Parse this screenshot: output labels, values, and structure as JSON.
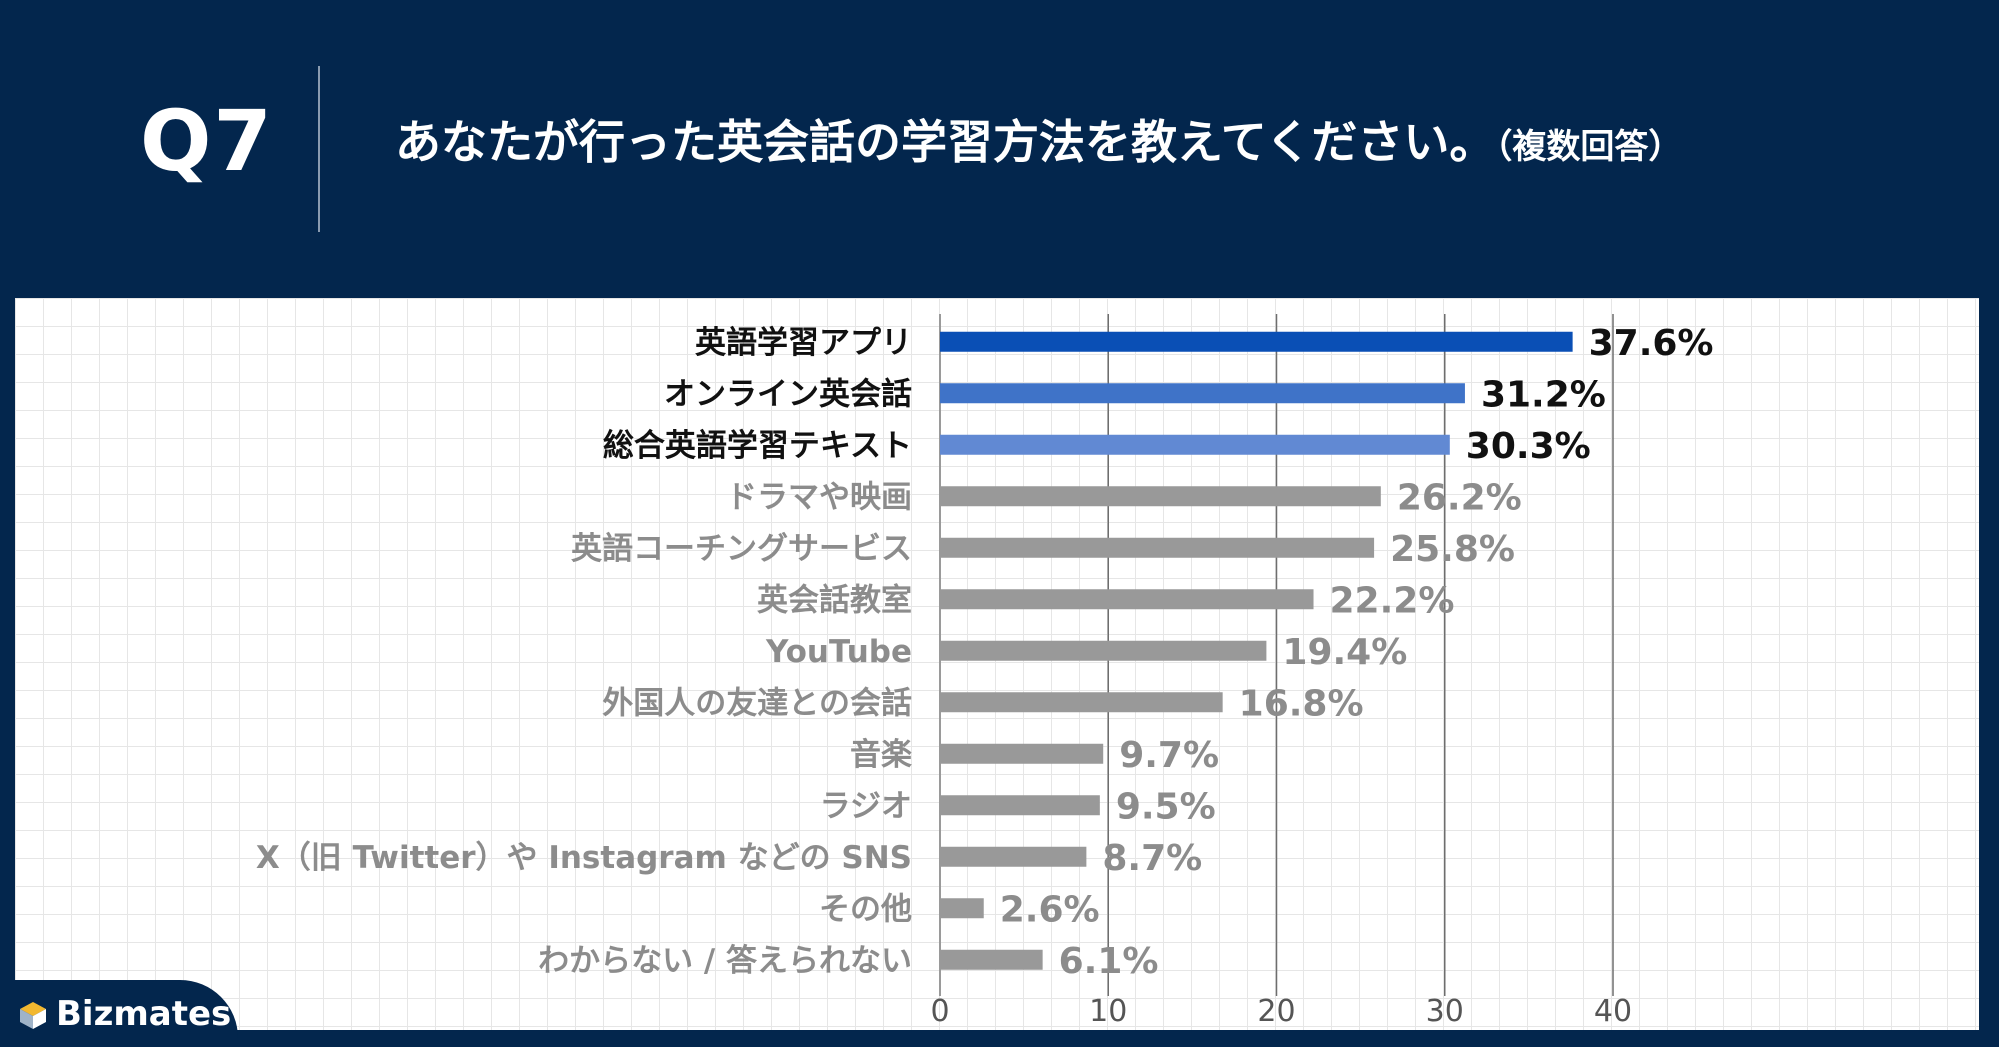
{
  "header": {
    "q_label": "Q7",
    "question": "あなたが行った英会話の学習方法を教えてください。",
    "question_note": "（複数回答）"
  },
  "logo": {
    "text": "Bizmates"
  },
  "colors": {
    "top1": "#0a4fb5",
    "top2": "#3f73c8",
    "top3": "#6189d3",
    "other": "#999999",
    "top_label": "#111111",
    "other_label": "#8c8c8c"
  },
  "chart_data": {
    "type": "bar",
    "orientation": "horizontal",
    "categories": [
      "英語学習アプリ",
      "オンライン英会話",
      "総合英語学習テキスト",
      "ドラマや映画",
      "英語コーチングサービス",
      "英会話教室",
      "YouTube",
      "外国人の友達との会話",
      "音楽",
      "ラジオ",
      "X（旧 Twitter）や Instagram などの SNS",
      "その他",
      "わからない / 答えられない"
    ],
    "values": [
      37.6,
      31.2,
      30.3,
      26.2,
      25.8,
      22.2,
      19.4,
      16.8,
      9.7,
      9.5,
      8.7,
      2.6,
      6.1
    ],
    "value_labels": [
      "37.6%",
      "31.2%",
      "30.3%",
      "26.2%",
      "25.8%",
      "22.2%",
      "19.4%",
      "16.8%",
      "9.7%",
      "9.5%",
      "8.7%",
      "2.6%",
      "6.1%"
    ],
    "xlim": [
      0,
      40
    ],
    "ticks": [
      0,
      10,
      20,
      30,
      40
    ],
    "tick_labels": [
      "0",
      "10",
      "20",
      "30",
      "40"
    ],
    "highlight_top": 3,
    "grid": true
  }
}
